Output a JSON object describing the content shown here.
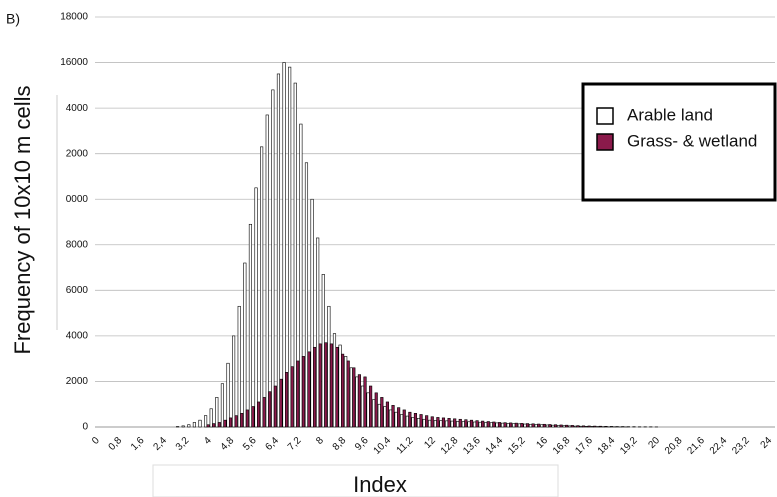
{
  "chart_data": {
    "type": "bar",
    "panel_label": "B)",
    "x_label": "Index",
    "y_label": "Frequency of 10x10 m cells",
    "categories": [
      "0",
      null,
      null,
      null,
      "0,8",
      null,
      null,
      null,
      "1,6",
      null,
      null,
      null,
      "2,4",
      null,
      null,
      null,
      "3,2",
      null,
      null,
      null,
      "4",
      null,
      null,
      null,
      "4,8",
      null,
      null,
      null,
      "5,6",
      null,
      null,
      null,
      "6,4",
      null,
      null,
      null,
      "7,2",
      null,
      null,
      null,
      "8",
      null,
      null,
      null,
      "8,8",
      null,
      null,
      null,
      "9,6",
      null,
      null,
      null,
      "10,4",
      null,
      null,
      null,
      "11,2",
      null,
      null,
      null,
      "12",
      null,
      null,
      null,
      "12,8",
      null,
      null,
      null,
      "13,6",
      null,
      null,
      null,
      "14,4",
      null,
      null,
      null,
      "15,2",
      null,
      null,
      null,
      "16",
      null,
      null,
      null,
      "16,8",
      null,
      null,
      null,
      "17,6",
      null,
      null,
      null,
      "18,4",
      null,
      null,
      null,
      "19,2",
      null,
      null,
      null,
      "20",
      null,
      null,
      null,
      "20,8",
      null,
      null,
      null,
      "21,6",
      null,
      null,
      null,
      "22,4",
      null,
      null,
      null,
      "23,2",
      null,
      null,
      null,
      "24"
    ],
    "series": [
      {
        "name": "Arable land",
        "color": "#ffffff",
        "values": [
          0,
          0,
          0,
          0,
          0,
          0,
          0,
          0,
          0,
          0,
          0,
          0,
          0,
          0,
          0,
          20,
          50,
          100,
          200,
          300,
          500,
          800,
          1300,
          1900,
          2800,
          4000,
          5300,
          7200,
          8900,
          10500,
          12300,
          13700,
          14800,
          15500,
          16000,
          15800,
          15100,
          13300,
          11600,
          10000,
          8300,
          6700,
          5300,
          4100,
          3600,
          3100,
          2600,
          2200,
          1800,
          1500,
          1200,
          1000,
          900,
          750,
          650,
          550,
          480,
          420,
          380,
          340,
          300,
          290,
          280,
          270,
          260,
          250,
          240,
          230,
          220,
          210,
          200,
          190,
          180,
          170,
          160,
          150,
          140,
          130,
          120,
          110,
          100,
          90,
          80,
          70,
          60,
          50,
          40,
          35,
          30,
          25,
          20,
          15,
          10,
          10,
          5,
          5,
          0,
          0,
          0,
          0,
          0,
          0,
          0,
          0,
          0,
          0,
          0,
          0,
          0,
          0,
          0,
          0,
          0,
          0,
          0,
          0,
          0,
          0,
          0,
          0,
          0
        ]
      },
      {
        "name": "Grass- & wetland",
        "color": "#8b1a4b",
        "values": [
          0,
          0,
          0,
          0,
          0,
          0,
          0,
          0,
          0,
          0,
          0,
          0,
          0,
          0,
          0,
          0,
          0,
          0,
          0,
          0,
          100,
          150,
          200,
          300,
          400,
          500,
          600,
          750,
          900,
          1100,
          1300,
          1550,
          1800,
          2100,
          2400,
          2650,
          2900,
          3100,
          3300,
          3500,
          3650,
          3700,
          3650,
          3500,
          3200,
          2900,
          2600,
          2300,
          2200,
          1800,
          1500,
          1300,
          1100,
          950,
          850,
          750,
          650,
          600,
          550,
          500,
          450,
          420,
          400,
          380,
          360,
          340,
          320,
          300,
          280,
          260,
          240,
          220,
          200,
          190,
          180,
          170,
          160,
          150,
          140,
          130,
          120,
          110,
          100,
          90,
          80,
          70,
          60,
          50,
          45,
          40,
          35,
          30,
          25,
          20,
          20,
          15,
          15,
          10,
          10,
          10,
          5,
          0,
          0,
          0,
          0,
          0,
          0,
          0,
          0,
          0,
          0,
          0,
          0,
          0,
          0,
          0,
          0,
          0,
          0,
          0,
          0
        ]
      }
    ],
    "ylim": [
      0,
      18000
    ],
    "yticks": [
      0,
      2000,
      4000,
      6000,
      8000,
      {
        "value": 10000,
        "label": "0000"
      },
      {
        "value": 12000,
        "label": "2000"
      },
      {
        "value": 14000,
        "label": "4000"
      },
      16000,
      18000
    ],
    "grid": true
  }
}
